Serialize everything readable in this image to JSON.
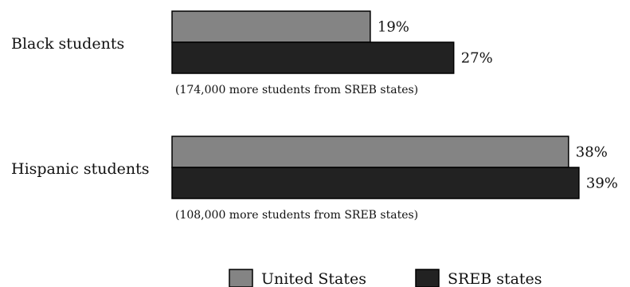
{
  "chart_data": {
    "type": "bar",
    "orientation": "horizontal",
    "categories": [
      "Black students",
      "Hispanic students"
    ],
    "series": [
      {
        "name": "United States",
        "values": [
          19,
          38
        ],
        "color": "#848484"
      },
      {
        "name": "SREB states",
        "values": [
          27,
          39
        ],
        "color": "#222222"
      }
    ],
    "value_labels": [
      [
        "19%",
        "38%"
      ],
      [
        "27%",
        "39%"
      ]
    ],
    "annotations": [
      "(174,000 more students from SREB states)",
      "(108,000 more students from SREB states)"
    ],
    "legend_placement": "bottom-center",
    "grid": false,
    "axes_visible": false
  }
}
